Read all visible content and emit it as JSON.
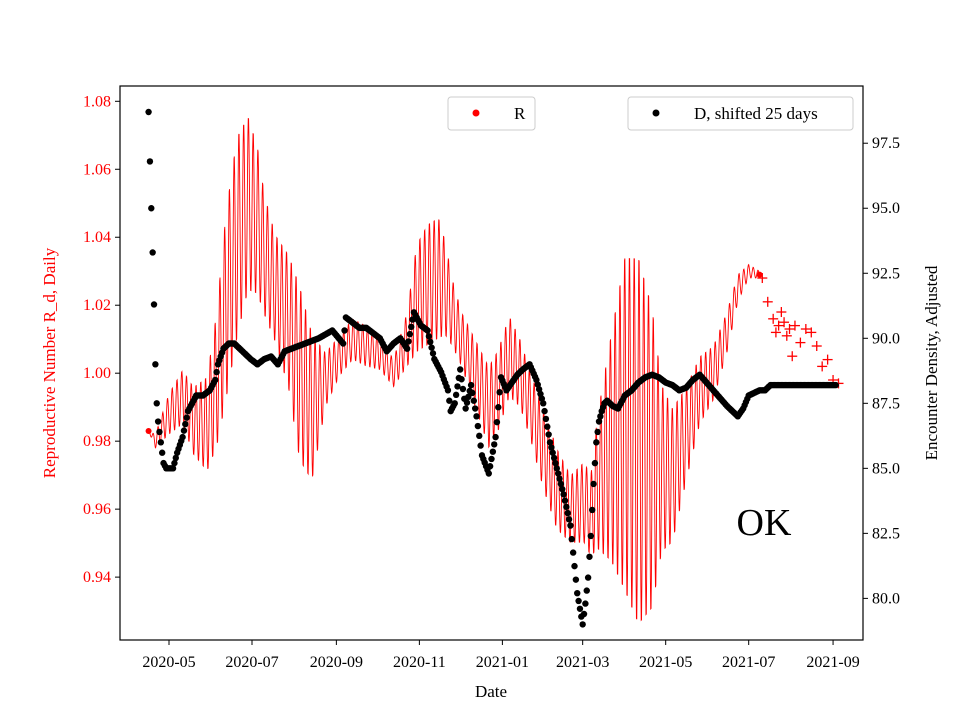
{
  "chart_data": {
    "type": "scatter",
    "state_annotation": "OK",
    "xlabel": "Date",
    "ylabel_left": "Reproductive Number R_d, Daily",
    "ylabel_right": "Encounter Density, Adjusted",
    "left_color": "#ff0000",
    "right_color": "#000000",
    "x_start_date": "2020-04-01",
    "xlim_days": [
      -6,
      540
    ],
    "ylim_left": [
      0.9215,
      1.0845
    ],
    "ylim_right": [
      78.4,
      99.7
    ],
    "x_ticks": [
      {
        "label": "2020-05",
        "day": 30
      },
      {
        "label": "2020-07",
        "day": 91
      },
      {
        "label": "2020-09",
        "day": 153
      },
      {
        "label": "2020-11",
        "day": 214
      },
      {
        "label": "2021-01",
        "day": 275
      },
      {
        "label": "2021-03",
        "day": 334
      },
      {
        "label": "2021-05",
        "day": 395
      },
      {
        "label": "2021-07",
        "day": 456
      },
      {
        "label": "2021-09",
        "day": 518
      }
    ],
    "y_ticks_left": [
      {
        "label": "0.94",
        "value": 0.94
      },
      {
        "label": "0.96",
        "value": 0.96
      },
      {
        "label": "0.98",
        "value": 0.98
      },
      {
        "label": "1.00",
        "value": 1.0
      },
      {
        "label": "1.02",
        "value": 1.02
      },
      {
        "label": "1.04",
        "value": 1.04
      },
      {
        "label": "1.06",
        "value": 1.06
      },
      {
        "label": "1.08",
        "value": 1.08
      }
    ],
    "y_ticks_right": [
      {
        "label": "80.0",
        "value": 80.0
      },
      {
        "label": "82.5",
        "value": 82.5
      },
      {
        "label": "85.0",
        "value": 85.0
      },
      {
        "label": "87.5",
        "value": 87.5
      },
      {
        "label": "90.0",
        "value": 90.0
      },
      {
        "label": "92.5",
        "value": 92.5
      },
      {
        "label": "95.0",
        "value": 95.0
      },
      {
        "label": "97.5",
        "value": 97.5
      }
    ],
    "legend": {
      "R": {
        "label": "R",
        "placement": "top-center",
        "marker": "dot",
        "color": "#ff0000"
      },
      "D": {
        "label": "D, shifted 25 days",
        "placement": "top-right",
        "marker": "dot",
        "color": "#000000"
      }
    },
    "series": [
      {
        "name": "R",
        "axis": "left",
        "color": "#ff0000",
        "days_mid": [
          15,
          20,
          30,
          40,
          48,
          58,
          65,
          72,
          80,
          88,
          95,
          100,
          108,
          118,
          126,
          135,
          145,
          155,
          165,
          175,
          185,
          195,
          205,
          212,
          220,
          228,
          233,
          238,
          245,
          255,
          265,
          272,
          280,
          288,
          296,
          305,
          315,
          325,
          335,
          340,
          345,
          355,
          365,
          375,
          385,
          392,
          400,
          410,
          420,
          430,
          440,
          448,
          456,
          464
        ],
        "mid": [
          0.983,
          0.98,
          0.988,
          0.993,
          0.986,
          0.985,
          0.998,
          1.02,
          1.04,
          1.05,
          1.045,
          1.035,
          1.025,
          1.015,
          1.0,
          0.99,
          0.998,
          1.005,
          1.01,
          1.008,
          1.006,
          1.0,
          1.01,
          1.022,
          1.026,
          1.028,
          1.025,
          1.018,
          1.01,
          1.0,
          0.99,
          0.995,
          1.005,
          1.0,
          0.99,
          0.978,
          0.966,
          0.96,
          0.962,
          0.958,
          0.968,
          0.978,
          0.985,
          0.98,
          0.975,
          0.972,
          0.97,
          0.982,
          0.995,
          1.0,
          1.012,
          1.025,
          1.03,
          1.029
        ],
        "spread": [
          0.0,
          0.002,
          0.006,
          0.008,
          0.01,
          0.014,
          0.02,
          0.028,
          0.03,
          0.026,
          0.022,
          0.018,
          0.016,
          0.02,
          0.026,
          0.022,
          0.008,
          0.006,
          0.006,
          0.006,
          0.005,
          0.004,
          0.008,
          0.016,
          0.018,
          0.018,
          0.014,
          0.01,
          0.008,
          0.01,
          0.012,
          0.012,
          0.012,
          0.01,
          0.01,
          0.012,
          0.012,
          0.01,
          0.012,
          0.012,
          0.02,
          0.034,
          0.05,
          0.055,
          0.045,
          0.025,
          0.02,
          0.014,
          0.01,
          0.008,
          0.006,
          0.004,
          0.002,
          0.001
        ],
        "tail_days": [
          466,
          470,
          474,
          476,
          478,
          480,
          482,
          484,
          486,
          488,
          490,
          494,
          498,
          502,
          506,
          510,
          514,
          518,
          522
        ],
        "tail_values": [
          1.028,
          1.021,
          1.016,
          1.012,
          1.014,
          1.018,
          1.015,
          1.011,
          1.013,
          1.005,
          1.014,
          1.009,
          1.013,
          1.012,
          1.008,
          1.002,
          1.004,
          0.998,
          0.997
        ]
      },
      {
        "name": "D, shifted 25 days",
        "axis": "right",
        "color": "#000000",
        "days": [
          15,
          16,
          17,
          18,
          19,
          20,
          21,
          22,
          24,
          26,
          28,
          30,
          33,
          36,
          40,
          44,
          50,
          55,
          60,
          64,
          66,
          70,
          74,
          78,
          82,
          86,
          90,
          95,
          100,
          105,
          110,
          115,
          120,
          125,
          130,
          140,
          150,
          158,
          160,
          165,
          170,
          175,
          180,
          185,
          190,
          195,
          200,
          205,
          210,
          215,
          220,
          225,
          230,
          235,
          237,
          240,
          244,
          248,
          252,
          256,
          260,
          265,
          270,
          274,
          278,
          282,
          286,
          290,
          295,
          300,
          305,
          310,
          315,
          320,
          325,
          330,
          334,
          336,
          338,
          340,
          342,
          344,
          346,
          348,
          350,
          352,
          356,
          360,
          365,
          370,
          375,
          380,
          385,
          390,
          395,
          400,
          405,
          410,
          415,
          420,
          425,
          430,
          435,
          440,
          444,
          448,
          452,
          456,
          460,
          464,
          468,
          472,
          476,
          480,
          485,
          490,
          495,
          500,
          505,
          510,
          515,
          520
        ],
        "values": [
          98.7,
          96.8,
          95.0,
          93.3,
          91.3,
          89.0,
          87.5,
          86.8,
          86.0,
          85.2,
          85.0,
          85.0,
          85.0,
          85.6,
          86.2,
          87.2,
          87.8,
          87.8,
          88.0,
          88.4,
          89.0,
          89.6,
          89.8,
          89.8,
          89.6,
          89.4,
          89.2,
          89.0,
          89.2,
          89.3,
          89.0,
          89.5,
          89.6,
          89.7,
          89.8,
          90.0,
          90.3,
          89.8,
          90.8,
          90.6,
          90.4,
          90.4,
          90.2,
          90.0,
          89.5,
          89.8,
          90.0,
          89.6,
          91.0,
          90.5,
          90.3,
          89.2,
          88.7,
          88.0,
          87.2,
          87.5,
          88.8,
          87.3,
          88.2,
          87.0,
          85.5,
          84.8,
          86.2,
          88.5,
          88.0,
          88.3,
          88.6,
          88.8,
          89.0,
          88.4,
          87.5,
          86.0,
          85.0,
          84.0,
          82.8,
          80.2,
          79.0,
          79.8,
          80.8,
          82.4,
          84.4,
          86.0,
          86.8,
          87.2,
          87.5,
          87.6,
          87.4,
          87.3,
          87.8,
          88.0,
          88.3,
          88.5,
          88.6,
          88.5,
          88.3,
          88.2,
          88.0,
          88.1,
          88.4,
          88.6,
          88.3,
          88.0,
          87.7,
          87.4,
          87.2,
          87.0,
          87.3,
          87.8,
          87.9,
          88.0,
          88.0,
          88.2,
          88.2,
          88.2,
          88.2,
          88.2,
          88.2,
          88.2,
          88.2,
          88.2,
          88.2,
          88.2
        ]
      }
    ]
  }
}
